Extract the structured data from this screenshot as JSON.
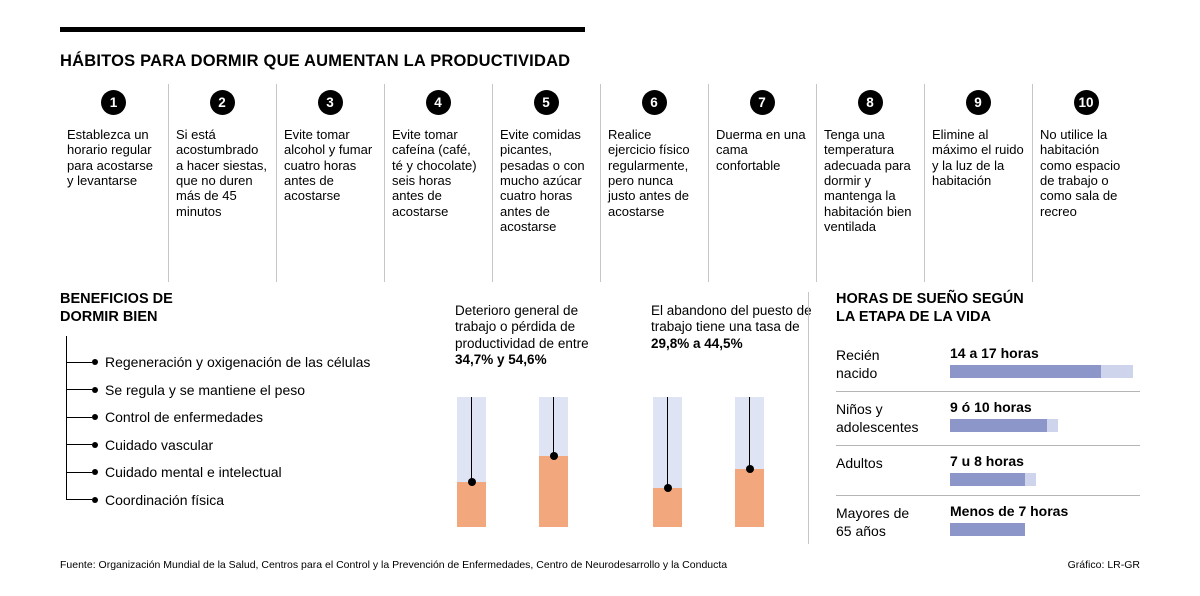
{
  "header": {
    "title": "HÁBITOS PARA DORMIR QUE AUMENTAN LA PRODUCTIVIDAD"
  },
  "habits": {
    "items": [
      {
        "number": "1",
        "text": "Establezca un horario regular para acostarse y levantarse"
      },
      {
        "number": "2",
        "text": "Si está acostumbrado a hacer siestas, que no duren más de 45 minutos"
      },
      {
        "number": "3",
        "text": "Evite tomar alcohol y fumar cuatro horas antes de acostarse"
      },
      {
        "number": "4",
        "text": "Evite tomar cafeína (café, té y chocolate) seis horas antes de acostarse"
      },
      {
        "number": "5",
        "text": "Evite comidas picantes, pesadas o con mucho azúcar cuatro horas antes de acostarse"
      },
      {
        "number": "6",
        "text": "Realice ejercicio físico regularmente, pero nunca justo antes de acostarse"
      },
      {
        "number": "7",
        "text": "Duerma en una cama confortable"
      },
      {
        "number": "8",
        "text": "Tenga una temperatura adecuada para dormir y mantenga la habitación bien ventilada"
      },
      {
        "number": "9",
        "text": "Elimine al máximo el ruido y la luz de la habitación"
      },
      {
        "number": "10",
        "text": "No utilice la habitación como espacio de trabajo o como sala de recreo"
      }
    ]
  },
  "benefits": {
    "title": "BENEFICIOS DE\nDORMIR BIEN",
    "items": [
      "Regeneración y oxigenación de las células",
      "Se regula y se mantiene el peso",
      "Control de enfermedades",
      "Cuidado vascular",
      "Cuidado mental e intelectual",
      "Coordinación física"
    ]
  },
  "chart_data": [
    {
      "type": "bar",
      "title": "Deterioro general de trabajo o pérdida de productividad de entre",
      "values_label": "34,7% y 54,6%",
      "values": [
        34.7,
        54.6
      ],
      "unit": "%",
      "ylim": [
        0,
        100
      ],
      "bar_color": "#f2a87c",
      "track_color": "#dfe4f4"
    },
    {
      "type": "bar",
      "title": "El abandono del puesto de trabajo tiene una tasa de",
      "values_label": "29,8% a 44,5%",
      "values": [
        29.8,
        44.5
      ],
      "unit": "%",
      "ylim": [
        0,
        100
      ],
      "bar_color": "#f2a87c",
      "track_color": "#dfe4f4"
    },
    {
      "type": "bar",
      "orientation": "horizontal",
      "title": "HORAS DE SUEÑO SEGÚN\nLA ETAPA DE LA VIDA",
      "categories": [
        "Recién nacido",
        "Niños y adolescentes",
        "Adultos",
        "Mayores de 65 años"
      ],
      "labels": [
        "14 a 17 horas",
        "9 ó 10 horas",
        "7 u 8 horas",
        "Menos de 7 horas"
      ],
      "ranges": [
        [
          14,
          17
        ],
        [
          9,
          10
        ],
        [
          7,
          8
        ],
        [
          7,
          7
        ]
      ],
      "xlim": [
        0,
        17
      ],
      "bar_color": "#8d96c8",
      "bar_light_color": "#cdd4ec"
    }
  ],
  "footer": {
    "source": "Fuente: Organización Mundial de la Salud, Centros para el Control y la Prevención de Enfermedades, Centro de Neurodesarrollo y la Conducta",
    "credit": "Gráfico: LR-GR"
  }
}
